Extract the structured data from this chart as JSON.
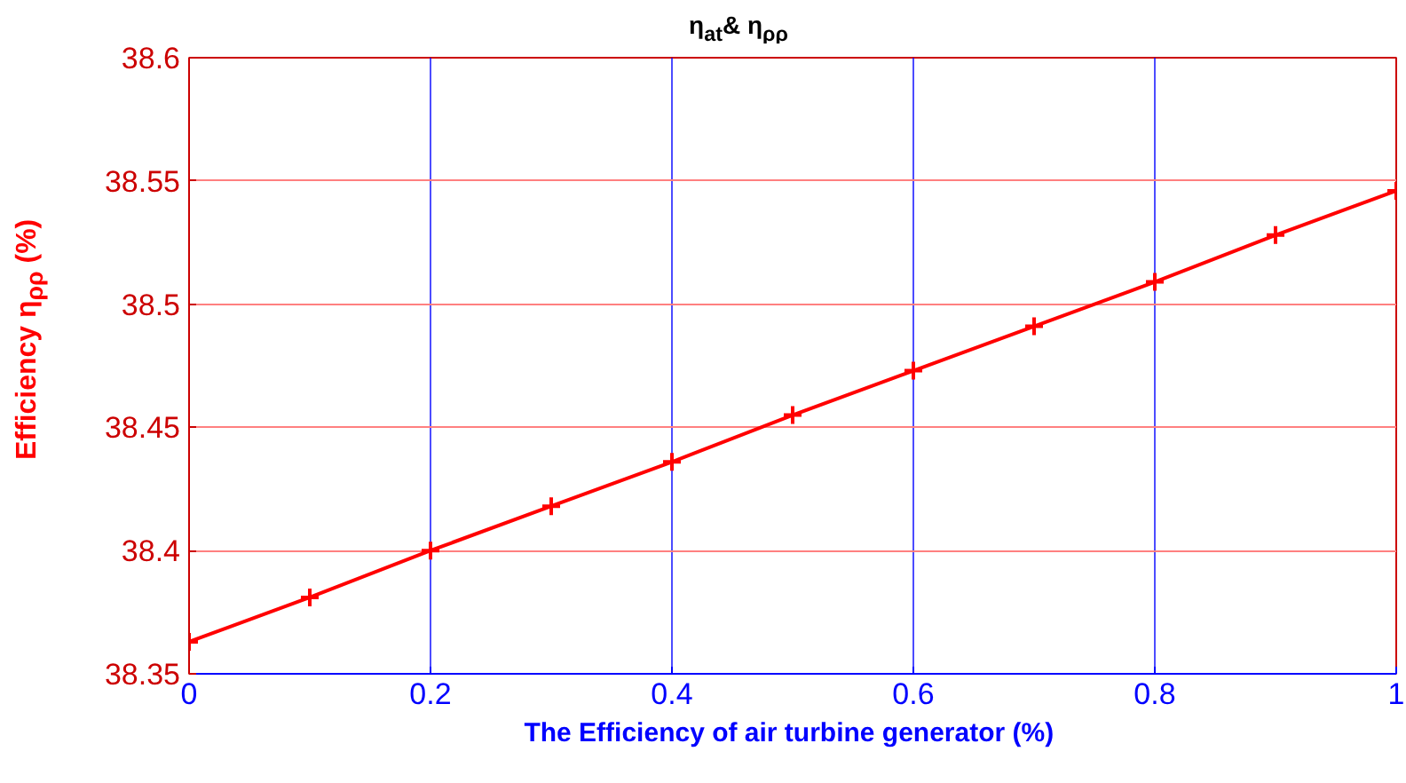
{
  "chart_data": {
    "type": "line",
    "title": "η$_{at}$& η$_{ρρ}$",
    "xlabel": "The Efficiency of air turbine generator  (%)",
    "ylabel": "Efficiency η$_{ρρ}$  (%)",
    "x": [
      0,
      0.1,
      0.2,
      0.3,
      0.4,
      0.5,
      0.6,
      0.7,
      0.8,
      0.9,
      1
    ],
    "series": [
      {
        "color": "#ff0000",
        "values": [
          38.363,
          38.381,
          38.4,
          38.418,
          38.436,
          38.455,
          38.473,
          38.491,
          38.509,
          38.528,
          38.546
        ]
      }
    ],
    "xlim": [
      0,
      1
    ],
    "xticks": [
      0,
      0.2,
      0.4,
      0.6,
      0.8,
      1
    ],
    "ylim": [
      38.35,
      38.6
    ],
    "yticks": [
      38.35,
      38.4,
      38.45,
      38.5,
      38.55,
      38.6
    ],
    "grid": true,
    "marker": "cross",
    "line_style": "solid"
  }
}
